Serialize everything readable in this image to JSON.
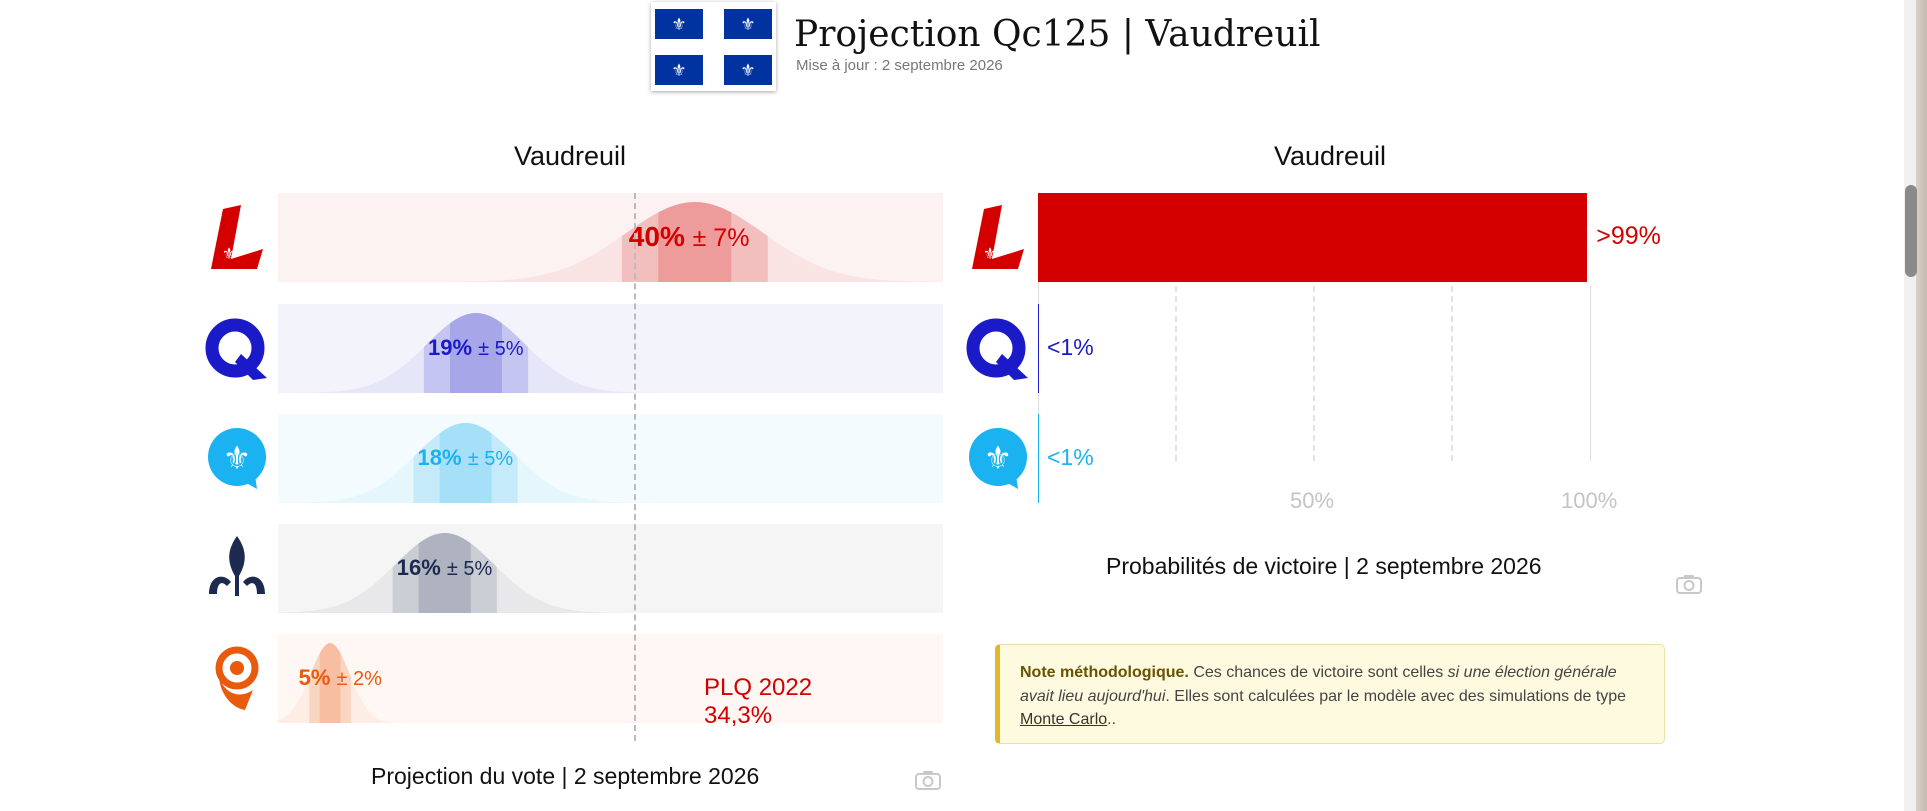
{
  "header": {
    "title": "Projection Qc125 | Vaudreuil",
    "subtitle": "Mise à jour : 2 septembre 2026",
    "flag_icon": "quebec-flag-icon",
    "flag_color": "#0033a0"
  },
  "vote_panel": {
    "title": "Vaudreuil",
    "caption": "Projection du vote | 2 septembre 2026",
    "reference": {
      "line1": "PLQ 2022",
      "line2": "34,3%",
      "value": 34.3
    },
    "camera_icon": "camera-icon"
  },
  "prob_panel": {
    "title": "Vaudreuil",
    "caption": "Probabilités de victoire | 2 septembre 2026",
    "ticks": [
      "50%",
      "100%"
    ],
    "camera_icon": "camera-icon"
  },
  "note": {
    "bold": "Note méthodologique.",
    "text1": " Ces chances de victoire sont celles ",
    "italic": "si une élection générale avait lieu aujourd'hui",
    "text2": ". Elles sont calculées par le modèle avec des simulations de type ",
    "link": "Monte Carlo",
    "text3": ".."
  },
  "chart_data": [
    {
      "type": "bar",
      "chart": "vote projection with uncertainty",
      "categories": [
        "PLQ",
        "PQ",
        "QS",
        "PCQ",
        "CAQ"
      ],
      "values": [
        40,
        19,
        18,
        16,
        5
      ],
      "margin": [
        7,
        5,
        5,
        5,
        2
      ],
      "labels": [
        "40%",
        "19%",
        "18%",
        "16%",
        "5%"
      ],
      "margin_labels": [
        "± 7%",
        "± 5%",
        "± 5%",
        "± 5%",
        "± 2%"
      ],
      "reference_line": {
        "label": "PLQ 2022",
        "value": 34.3
      },
      "xlim": [
        0,
        100
      ],
      "colors": [
        "#d40000",
        "#1a1ac8",
        "#1ab2f0",
        "#1c2a4f",
        "#ea5a0c"
      ],
      "logo_icons": [
        "plq-logo-icon",
        "pq-logo-icon",
        "qs-logo-icon",
        "pcq-logo-icon",
        "caq-logo-icon"
      ],
      "title": "Vaudreuil"
    },
    {
      "type": "bar",
      "chart": "probability of victory",
      "categories": [
        "PLQ",
        "PQ",
        "QS"
      ],
      "values": [
        99.5,
        0.5,
        0.5
      ],
      "labels": [
        ">99%",
        "<1%",
        "<1%"
      ],
      "xlim": [
        0,
        100
      ],
      "xticks": [
        "50%",
        "100%"
      ],
      "grid": true,
      "colors": [
        "#d40000",
        "#1a1ac8",
        "#1ab2f0"
      ],
      "logo_icons": [
        "plq-logo-icon",
        "pq-logo-icon",
        "qs-logo-icon"
      ],
      "title": "Vaudreuil"
    }
  ]
}
